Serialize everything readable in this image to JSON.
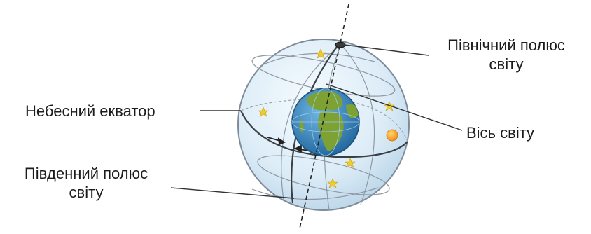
{
  "labels": {
    "north_pole": {
      "line1": "Північний полюс",
      "line2": "світу"
    },
    "celestial_equator": "Небесний екватор",
    "world_axis": "Вісь світу",
    "south_pole": {
      "line1": "Південний полюс",
      "line2": "світу"
    }
  },
  "colors": {
    "sphere_fill": "#dcecf7",
    "sphere_edge": "#7e8c99",
    "grid_lines": "#8f99a3",
    "earth_ocean": "#2f7fb6",
    "earth_land": "#7da233",
    "stars": "#f1cc2d",
    "sun": "#ef9a1d",
    "leader_lines": "#333333"
  }
}
